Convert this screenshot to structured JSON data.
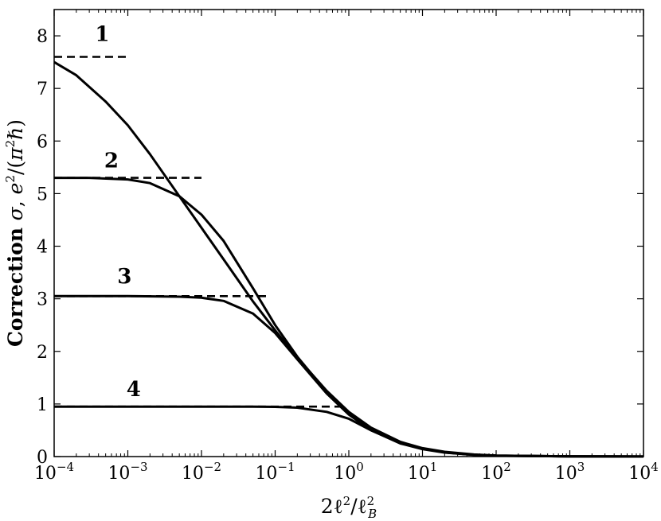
{
  "chart_data": {
    "type": "line",
    "title": "",
    "xlabel": "2ℓ²/ℓ_B²",
    "ylabel": "Correction σ, e²/(π²ℏ)",
    "xscale": "log",
    "xlim": [
      0.0001,
      10000
    ],
    "ylim": [
      0,
      8.5
    ],
    "grid": false,
    "legend": "none",
    "x_ticks": [
      {
        "value": 0.0001,
        "base": "10",
        "exp": "−4"
      },
      {
        "value": 0.001,
        "base": "10",
        "exp": "−3"
      },
      {
        "value": 0.01,
        "base": "10",
        "exp": "−2"
      },
      {
        "value": 0.1,
        "base": "10",
        "exp": "−1"
      },
      {
        "value": 1,
        "base": "10",
        "exp": "0"
      },
      {
        "value": 10,
        "base": "10",
        "exp": "1"
      },
      {
        "value": 100,
        "base": "10",
        "exp": "2"
      },
      {
        "value": 1000,
        "base": "10",
        "exp": "3"
      },
      {
        "value": 10000,
        "base": "10",
        "exp": "4"
      }
    ],
    "y_ticks": [
      "0",
      "1",
      "2",
      "3",
      "4",
      "5",
      "6",
      "7",
      "8"
    ],
    "series": [
      {
        "label": "1",
        "style": "solid",
        "x": [
          0.0001,
          0.0002,
          0.0005,
          0.001,
          0.002,
          0.005,
          0.01,
          0.02,
          0.05,
          0.1,
          0.2,
          0.5,
          1,
          2,
          5,
          10,
          20,
          50,
          100,
          1000,
          10000
        ],
        "y": [
          7.5,
          7.25,
          6.75,
          6.3,
          5.75,
          4.95,
          4.35,
          3.75,
          2.95,
          2.4,
          1.88,
          1.25,
          0.85,
          0.55,
          0.28,
          0.16,
          0.09,
          0.04,
          0.02,
          0.005,
          0.001
        ]
      },
      {
        "label": "2",
        "style": "solid",
        "x": [
          0.0001,
          0.0003,
          0.001,
          0.002,
          0.005,
          0.01,
          0.02,
          0.05,
          0.1,
          0.2,
          0.5,
          1,
          2,
          5,
          10,
          20,
          50,
          100,
          1000,
          10000
        ],
        "y": [
          5.3,
          5.3,
          5.27,
          5.2,
          4.95,
          4.6,
          4.1,
          3.2,
          2.5,
          1.9,
          1.22,
          0.82,
          0.52,
          0.26,
          0.15,
          0.08,
          0.035,
          0.018,
          0.004,
          0.001
        ]
      },
      {
        "label": "3",
        "style": "solid",
        "x": [
          0.0001,
          0.001,
          0.005,
          0.01,
          0.02,
          0.05,
          0.1,
          0.2,
          0.5,
          1,
          2,
          5,
          10,
          20,
          50,
          100,
          1000,
          10000
        ],
        "y": [
          3.05,
          3.05,
          3.04,
          3.02,
          2.96,
          2.72,
          2.35,
          1.85,
          1.2,
          0.8,
          0.5,
          0.25,
          0.14,
          0.075,
          0.032,
          0.016,
          0.003,
          0.001
        ]
      },
      {
        "label": "4",
        "style": "solid",
        "x": [
          0.0001,
          0.01,
          0.05,
          0.1,
          0.2,
          0.5,
          1,
          2,
          5,
          10,
          20,
          50,
          100,
          1000,
          10000
        ],
        "y": [
          0.95,
          0.95,
          0.95,
          0.945,
          0.93,
          0.85,
          0.72,
          0.5,
          0.26,
          0.15,
          0.08,
          0.033,
          0.017,
          0.003,
          0.0007
        ]
      },
      {
        "label": "1",
        "style": "dashed",
        "x": [
          0.0001,
          0.001
        ],
        "y": [
          7.6,
          7.6
        ]
      },
      {
        "label": "2",
        "style": "dashed",
        "x": [
          0.0001,
          0.01
        ],
        "y": [
          5.3,
          5.3
        ]
      },
      {
        "label": "3",
        "style": "dashed",
        "x": [
          0.0001,
          0.08
        ],
        "y": [
          3.05,
          3.05
        ]
      },
      {
        "label": "4",
        "style": "dashed",
        "x": [
          0.0001,
          0.9
        ],
        "y": [
          0.95,
          0.95
        ]
      }
    ],
    "annotations": [
      {
        "text": "1",
        "x": 0.00045,
        "y": 7.9
      },
      {
        "text": "2",
        "x": 0.0006,
        "y": 5.5
      },
      {
        "text": "3",
        "x": 0.0009,
        "y": 3.3
      },
      {
        "text": "4",
        "x": 0.0012,
        "y": 1.15
      }
    ]
  }
}
